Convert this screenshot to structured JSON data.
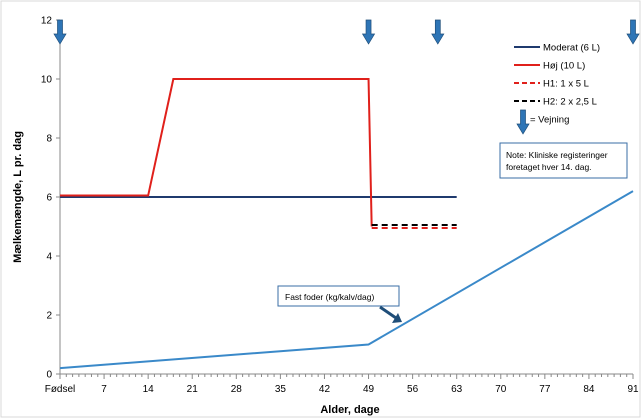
{
  "chart_data": {
    "type": "line",
    "xlabel": "Alder, dage",
    "ylabel": "Mælkemængde, L pr. dag",
    "xlim": [
      0,
      91
    ],
    "ylim": [
      0,
      12
    ],
    "x_ticks": [
      {
        "value": 0,
        "label": "Fødsel"
      },
      {
        "value": 7,
        "label": "7"
      },
      {
        "value": 14,
        "label": "14"
      },
      {
        "value": 21,
        "label": "21"
      },
      {
        "value": 28,
        "label": "28"
      },
      {
        "value": 35,
        "label": "35"
      },
      {
        "value": 42,
        "label": "42"
      },
      {
        "value": 49,
        "label": "49"
      },
      {
        "value": 56,
        "label": "56"
      },
      {
        "value": 63,
        "label": "63"
      },
      {
        "value": 70,
        "label": "70"
      },
      {
        "value": 77,
        "label": "77"
      },
      {
        "value": 84,
        "label": "84"
      },
      {
        "value": 91,
        "label": "91"
      }
    ],
    "y_ticks": [
      0,
      2,
      4,
      6,
      8,
      10,
      12
    ],
    "grid": false,
    "legend_position": "top-right",
    "series": [
      {
        "name": "Moderat (6 L)",
        "color": "#1F3A6E",
        "dash": "solid",
        "x": [
          0,
          63
        ],
        "y": [
          6,
          6
        ]
      },
      {
        "name": "Høj (10 L)",
        "color": "#E0201B",
        "dash": "solid",
        "x": [
          0,
          14,
          18,
          49,
          49.5
        ],
        "y": [
          6.05,
          6.05,
          10,
          10,
          5
        ]
      },
      {
        "name": "H1: 1 x 5 L",
        "color": "#E0201B",
        "dash": "dashed",
        "x": [
          49.5,
          63
        ],
        "y": [
          4.95,
          4.95
        ]
      },
      {
        "name": "H2: 2 x 2,5 L",
        "color": "#000000",
        "dash": "dashed",
        "x": [
          49.5,
          63
        ],
        "y": [
          5.05,
          5.05
        ]
      },
      {
        "name": "",
        "color": "#3A89C9",
        "dash": "solid",
        "x": [
          0,
          49,
          91
        ],
        "y": [
          0.2,
          1.0,
          6.2
        ]
      }
    ],
    "weighing_days": [
      0,
      49,
      60,
      91
    ],
    "weighing_label": "= Vejning",
    "annotations": [
      {
        "text": "Fast foder (kg/kalv/dag)"
      },
      {
        "text_lines": [
          "Note: Kliniske registeringer",
          "foretaget hver 14. dag."
        ]
      }
    ],
    "colors": {
      "weighing_arrow": "#2E75B6",
      "axis": "#888888"
    }
  }
}
